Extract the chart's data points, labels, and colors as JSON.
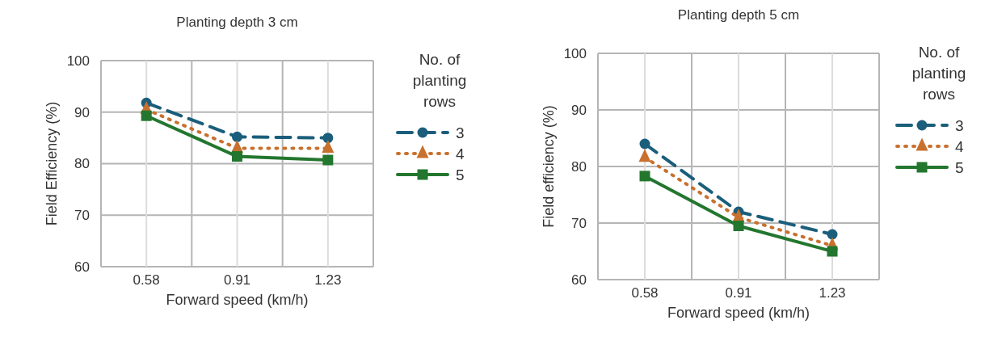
{
  "chart_data": [
    {
      "type": "line",
      "title": "Planting depth 3 cm",
      "xlabel": "Forward speed (km/h)",
      "ylabel": "Field Efficiency (%)",
      "legend_title": "No. of planting rows",
      "categories": [
        "0.58",
        "0.91",
        "1.23"
      ],
      "ylim": [
        60,
        100
      ],
      "yticks": [
        60,
        70,
        80,
        90,
        100
      ],
      "grid": true,
      "legend": "right",
      "series": [
        {
          "name": "3",
          "color": "#1b5e7b",
          "values": [
            91.8,
            85.2,
            85.0
          ],
          "marker": "circle",
          "line_style": "dashed"
        },
        {
          "name": "4",
          "color": "#c8702e",
          "values": [
            90.5,
            83.0,
            83.0
          ],
          "marker": "triangle",
          "line_style": "dotted"
        },
        {
          "name": "5",
          "color": "#23762e",
          "values": [
            89.3,
            81.4,
            80.7
          ],
          "marker": "square",
          "line_style": "solid"
        }
      ]
    },
    {
      "type": "line",
      "title": "Planting depth 5 cm",
      "xlabel": "Forward speed (km/h)",
      "ylabel": "Field efficiency (%)",
      "legend_title": "No. of planting rows",
      "categories": [
        "0.58",
        "0.91",
        "1.23"
      ],
      "ylim": [
        60,
        100
      ],
      "yticks": [
        60,
        70,
        80,
        90,
        100
      ],
      "grid": true,
      "legend": "right",
      "series": [
        {
          "name": "3",
          "color": "#1b5e7b",
          "values": [
            84.0,
            72.0,
            68.0
          ],
          "marker": "circle",
          "line_style": "dashed"
        },
        {
          "name": "4",
          "color": "#c8702e",
          "values": [
            81.6,
            71.0,
            66.0
          ],
          "marker": "triangle",
          "line_style": "dotted"
        },
        {
          "name": "5",
          "color": "#23762e",
          "values": [
            78.3,
            69.5,
            65.0
          ],
          "marker": "square",
          "line_style": "solid"
        }
      ]
    }
  ]
}
